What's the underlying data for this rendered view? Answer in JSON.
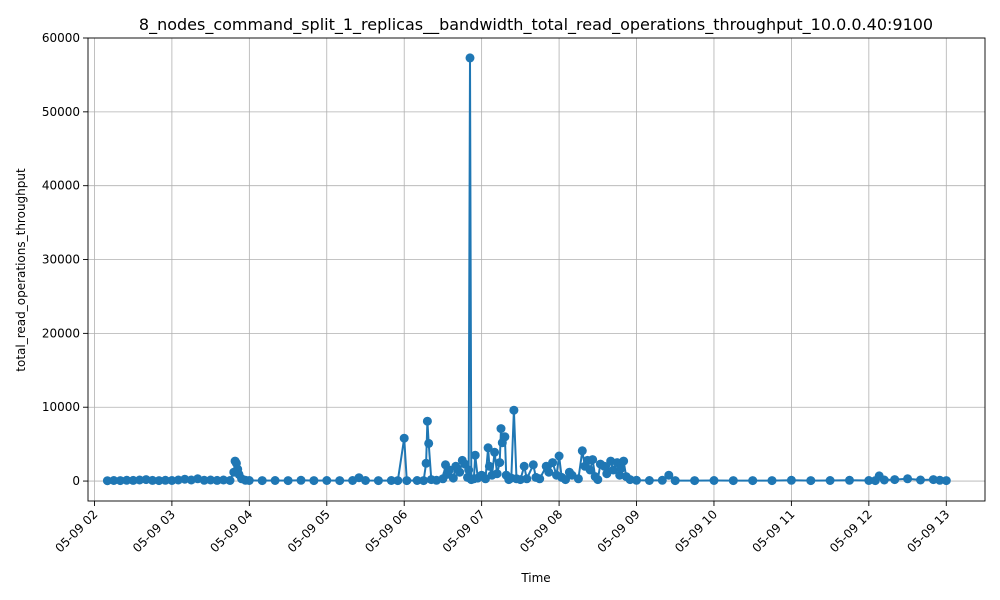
{
  "chart_data": {
    "type": "line",
    "title": "8_nodes_command_split_1_replicas__bandwidth_total_read_operations_throughput_10.0.0.40:9100",
    "xlabel": "Time",
    "ylabel": "total_read_operations_throughput",
    "grid": true,
    "marker": "circle",
    "color": "#1f77b4",
    "xlim": [
      "05-09 01:55",
      "05-09 13:30"
    ],
    "ylim": [
      -2700,
      60000
    ],
    "x_ticks": [
      "05-09 02",
      "05-09 03",
      "05-09 04",
      "05-09 05",
      "05-09 06",
      "05-09 07",
      "05-09 08",
      "05-09 09",
      "05-09 10",
      "05-09 11",
      "05-09 12",
      "05-09 13"
    ],
    "y_ticks": [
      "0",
      "10000",
      "20000",
      "30000",
      "40000",
      "50000",
      "60000"
    ],
    "series": [
      {
        "points": [
          [
            "05-09 02:10",
            50
          ],
          [
            "05-09 02:15",
            80
          ],
          [
            "05-09 02:20",
            60
          ],
          [
            "05-09 02:25",
            100
          ],
          [
            "05-09 02:30",
            90
          ],
          [
            "05-09 02:35",
            150
          ],
          [
            "05-09 02:40",
            200
          ],
          [
            "05-09 02:45",
            90
          ],
          [
            "05-09 02:50",
            60
          ],
          [
            "05-09 02:55",
            100
          ],
          [
            "05-09 03:00",
            80
          ],
          [
            "05-09 03:05",
            150
          ],
          [
            "05-09 03:10",
            250
          ],
          [
            "05-09 03:15",
            150
          ],
          [
            "05-09 03:20",
            300
          ],
          [
            "05-09 03:25",
            100
          ],
          [
            "05-09 03:30",
            150
          ],
          [
            "05-09 03:35",
            90
          ],
          [
            "05-09 03:40",
            150
          ],
          [
            "05-09 03:45",
            80
          ],
          [
            "05-09 03:48",
            1200
          ],
          [
            "05-09 03:49",
            2700
          ],
          [
            "05-09 03:50",
            2400
          ],
          [
            "05-09 03:51",
            1600
          ],
          [
            "05-09 03:52",
            900
          ],
          [
            "05-09 03:54",
            300
          ],
          [
            "05-09 03:57",
            100
          ],
          [
            "05-09 04:00",
            80
          ],
          [
            "05-09 04:10",
            60
          ],
          [
            "05-09 04:20",
            80
          ],
          [
            "05-09 04:30",
            60
          ],
          [
            "05-09 04:40",
            100
          ],
          [
            "05-09 04:50",
            60
          ],
          [
            "05-09 05:00",
            80
          ],
          [
            "05-09 05:10",
            60
          ],
          [
            "05-09 05:20",
            80
          ],
          [
            "05-09 05:25",
            450
          ],
          [
            "05-09 05:30",
            80
          ],
          [
            "05-09 05:40",
            60
          ],
          [
            "05-09 05:50",
            80
          ],
          [
            "05-09 05:55",
            60
          ],
          [
            "05-09 06:00",
            5800
          ],
          [
            "05-09 06:02",
            60
          ],
          [
            "05-09 06:10",
            80
          ],
          [
            "05-09 06:15",
            60
          ],
          [
            "05-09 06:17",
            2400
          ],
          [
            "05-09 06:18",
            8100
          ],
          [
            "05-09 06:19",
            5100
          ],
          [
            "05-09 06:21",
            200
          ],
          [
            "05-09 06:25",
            100
          ],
          [
            "05-09 06:30",
            300
          ],
          [
            "05-09 06:32",
            2200
          ],
          [
            "05-09 06:33",
            900
          ],
          [
            "05-09 06:35",
            1500
          ],
          [
            "05-09 06:38",
            400
          ],
          [
            "05-09 06:40",
            2000
          ],
          [
            "05-09 06:43",
            1200
          ],
          [
            "05-09 06:45",
            2800
          ],
          [
            "05-09 06:47",
            2300
          ],
          [
            "05-09 06:49",
            500
          ],
          [
            "05-09 06:50",
            1500
          ],
          [
            "05-09 06:51",
            57300
          ],
          [
            "05-09 06:52",
            200
          ],
          [
            "05-09 06:54",
            300
          ],
          [
            "05-09 06:55",
            3500
          ],
          [
            "05-09 06:57",
            400
          ],
          [
            "05-09 07:00",
            800
          ],
          [
            "05-09 07:03",
            300
          ],
          [
            "05-09 07:05",
            4500
          ],
          [
            "05-09 07:06",
            2000
          ],
          [
            "05-09 07:08",
            800
          ],
          [
            "05-09 07:10",
            3900
          ],
          [
            "05-09 07:12",
            1000
          ],
          [
            "05-09 07:14",
            2500
          ],
          [
            "05-09 07:15",
            7100
          ],
          [
            "05-09 07:16",
            5200
          ],
          [
            "05-09 07:18",
            6000
          ],
          [
            "05-09 07:19",
            800
          ],
          [
            "05-09 07:21",
            200
          ],
          [
            "05-09 07:23",
            400
          ],
          [
            "05-09 07:25",
            9600
          ],
          [
            "05-09 07:27",
            300
          ],
          [
            "05-09 07:30",
            200
          ],
          [
            "05-09 07:33",
            2000
          ],
          [
            "05-09 07:35",
            300
          ],
          [
            "05-09 07:40",
            2200
          ],
          [
            "05-09 07:42",
            500
          ],
          [
            "05-09 07:45",
            300
          ],
          [
            "05-09 07:50",
            2000
          ],
          [
            "05-09 07:52",
            1200
          ],
          [
            "05-09 07:55",
            2500
          ],
          [
            "05-09 07:58",
            800
          ],
          [
            "05-09 08:00",
            3400
          ],
          [
            "05-09 08:02",
            500
          ],
          [
            "05-09 08:05",
            200
          ],
          [
            "05-09 08:08",
            1200
          ],
          [
            "05-09 08:10",
            800
          ],
          [
            "05-09 08:15",
            300
          ],
          [
            "05-09 08:18",
            4100
          ],
          [
            "05-09 08:20",
            2000
          ],
          [
            "05-09 08:22",
            2800
          ],
          [
            "05-09 08:24",
            1500
          ],
          [
            "05-09 08:26",
            2900
          ],
          [
            "05-09 08:28",
            600
          ],
          [
            "05-09 08:30",
            200
          ],
          [
            "05-09 08:32",
            2300
          ],
          [
            "05-09 08:35",
            2000
          ],
          [
            "05-09 08:37",
            1000
          ],
          [
            "05-09 08:40",
            2700
          ],
          [
            "05-09 08:42",
            1500
          ],
          [
            "05-09 08:45",
            2500
          ],
          [
            "05-09 08:47",
            800
          ],
          [
            "05-09 08:48",
            1700
          ],
          [
            "05-09 08:50",
            2700
          ],
          [
            "05-09 08:52",
            600
          ],
          [
            "05-09 08:55",
            200
          ],
          [
            "05-09 09:00",
            100
          ],
          [
            "05-09 09:10",
            80
          ],
          [
            "05-09 09:20",
            100
          ],
          [
            "05-09 09:25",
            800
          ],
          [
            "05-09 09:30",
            60
          ],
          [
            "05-09 09:45",
            60
          ],
          [
            "05-09 10:00",
            80
          ],
          [
            "05-09 10:15",
            60
          ],
          [
            "05-09 10:30",
            60
          ],
          [
            "05-09 10:45",
            60
          ],
          [
            "05-09 11:00",
            100
          ],
          [
            "05-09 11:15",
            60
          ],
          [
            "05-09 11:30",
            80
          ],
          [
            "05-09 11:45",
            100
          ],
          [
            "05-09 12:00",
            80
          ],
          [
            "05-09 12:05",
            60
          ],
          [
            "05-09 12:08",
            700
          ],
          [
            "05-09 12:12",
            150
          ],
          [
            "05-09 12:20",
            200
          ],
          [
            "05-09 12:30",
            300
          ],
          [
            "05-09 12:40",
            150
          ],
          [
            "05-09 12:50",
            200
          ],
          [
            "05-09 12:55",
            100
          ],
          [
            "05-09 13:00",
            60
          ]
        ]
      }
    ]
  }
}
